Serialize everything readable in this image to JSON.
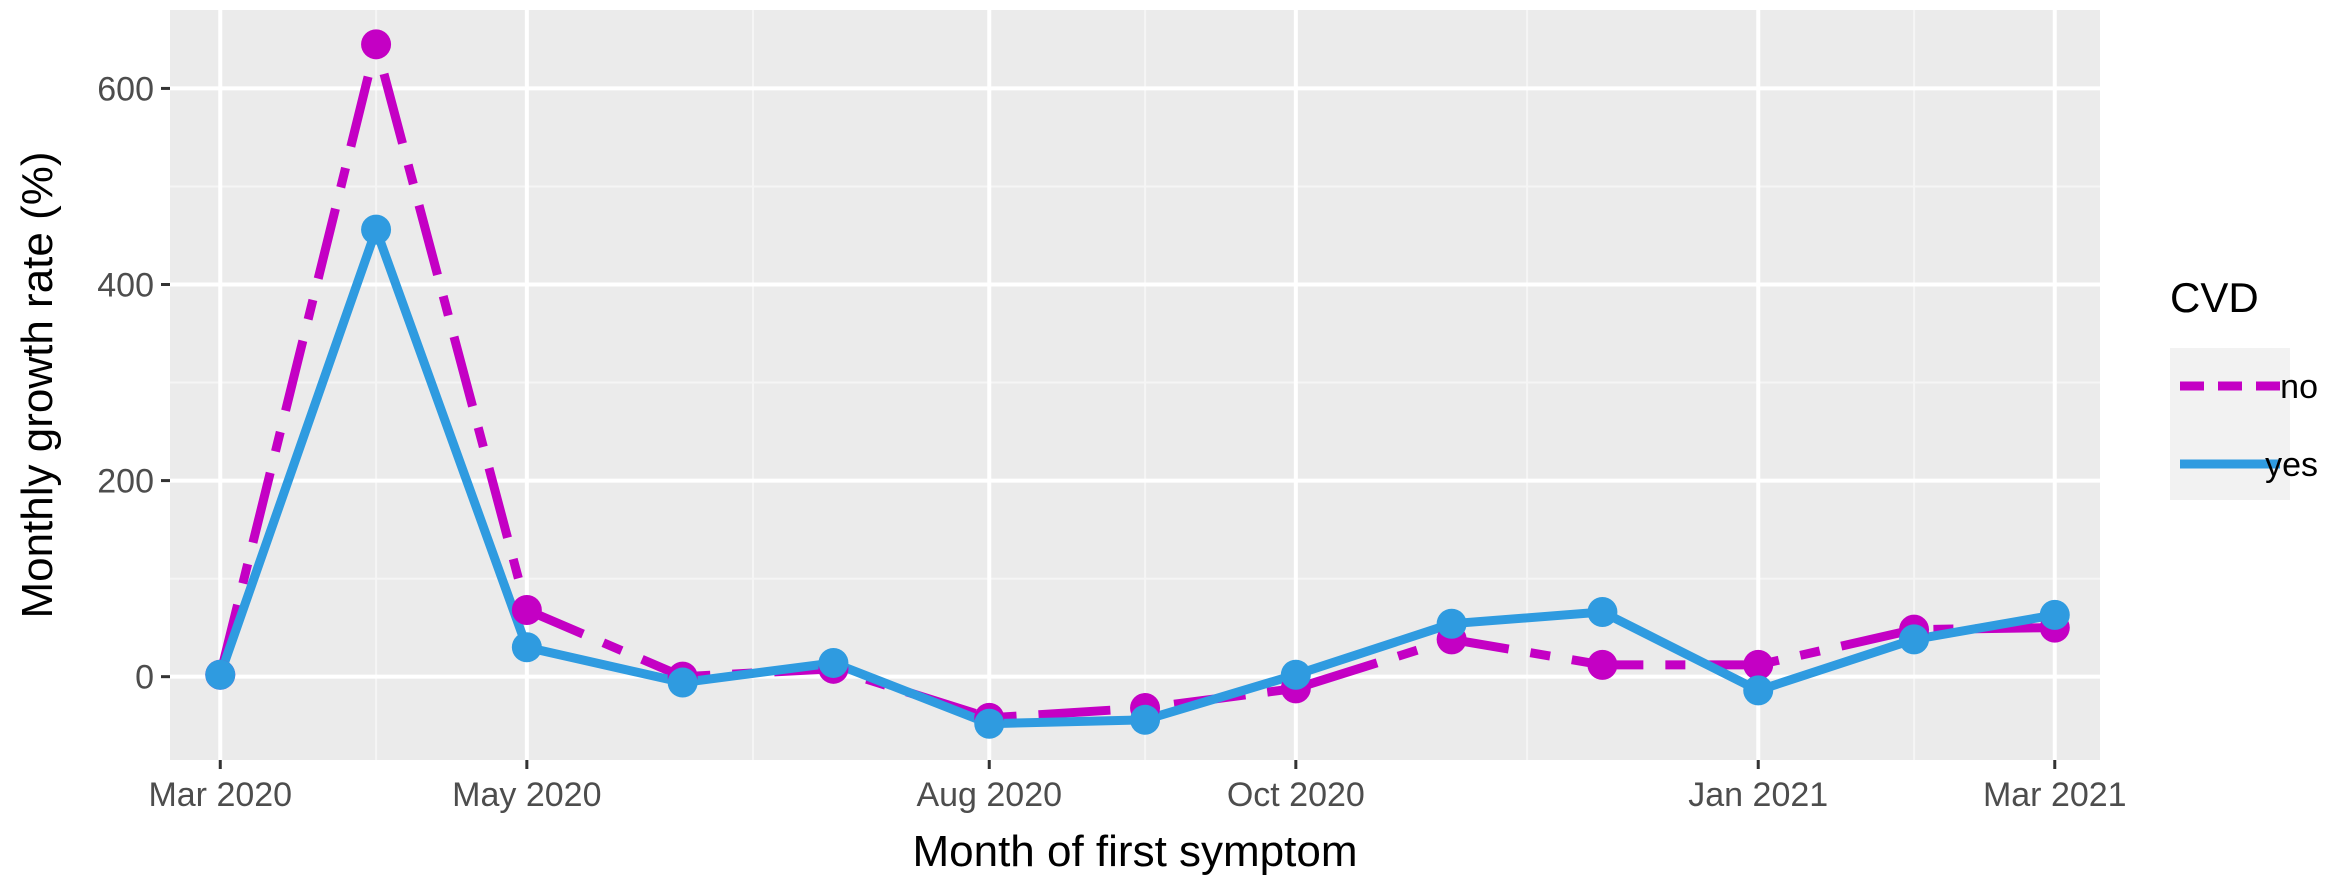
{
  "chart_data": {
    "type": "line",
    "xlabel": "Month of first symptom",
    "ylabel": "Monthly growth rate (%)",
    "x_axis_kind": "date",
    "x": [
      "2020-03-01",
      "2020-04-01",
      "2020-05-01",
      "2020-06-01",
      "2020-07-01",
      "2020-08-01",
      "2020-09-01",
      "2020-10-01",
      "2020-11-01",
      "2020-12-01",
      "2021-01-01",
      "2021-02-01",
      "2021-03-01"
    ],
    "xlim": [
      "2020-02-20",
      "2021-03-10"
    ],
    "x_ticks": [
      {
        "date": "2020-03-01",
        "label": "Mar 2020"
      },
      {
        "date": "2020-05-01",
        "label": "May 2020"
      },
      {
        "date": "2020-08-01",
        "label": "Aug 2020"
      },
      {
        "date": "2020-10-01",
        "label": "Oct 2020"
      },
      {
        "date": "2021-01-01",
        "label": "Jan 2021"
      },
      {
        "date": "2021-03-01",
        "label": "Mar 2021"
      }
    ],
    "x_minor_grid": [
      "2020-04-01",
      "2020-06-15",
      "2020-09-01",
      "2020-11-16",
      "2021-02-01"
    ],
    "ylim": [
      -85,
      680
    ],
    "y_ticks": [
      0,
      200,
      400,
      600
    ],
    "y_minor_grid": [
      -100,
      100,
      300,
      500
    ],
    "grid": true,
    "legend_position": "right",
    "legend_title": "CVD",
    "series": [
      {
        "name": "no",
        "color": "#C400C4",
        "line_style": "dashed",
        "values": [
          2,
          645,
          68,
          0,
          8,
          -42,
          -32,
          -12,
          38,
          12,
          12,
          48,
          50
        ]
      },
      {
        "name": "yes",
        "color": "#2F9BE0",
        "line_style": "solid",
        "values": [
          2,
          456,
          30,
          -6,
          14,
          -48,
          -44,
          2,
          54,
          66,
          -14,
          38,
          63
        ]
      }
    ]
  }
}
